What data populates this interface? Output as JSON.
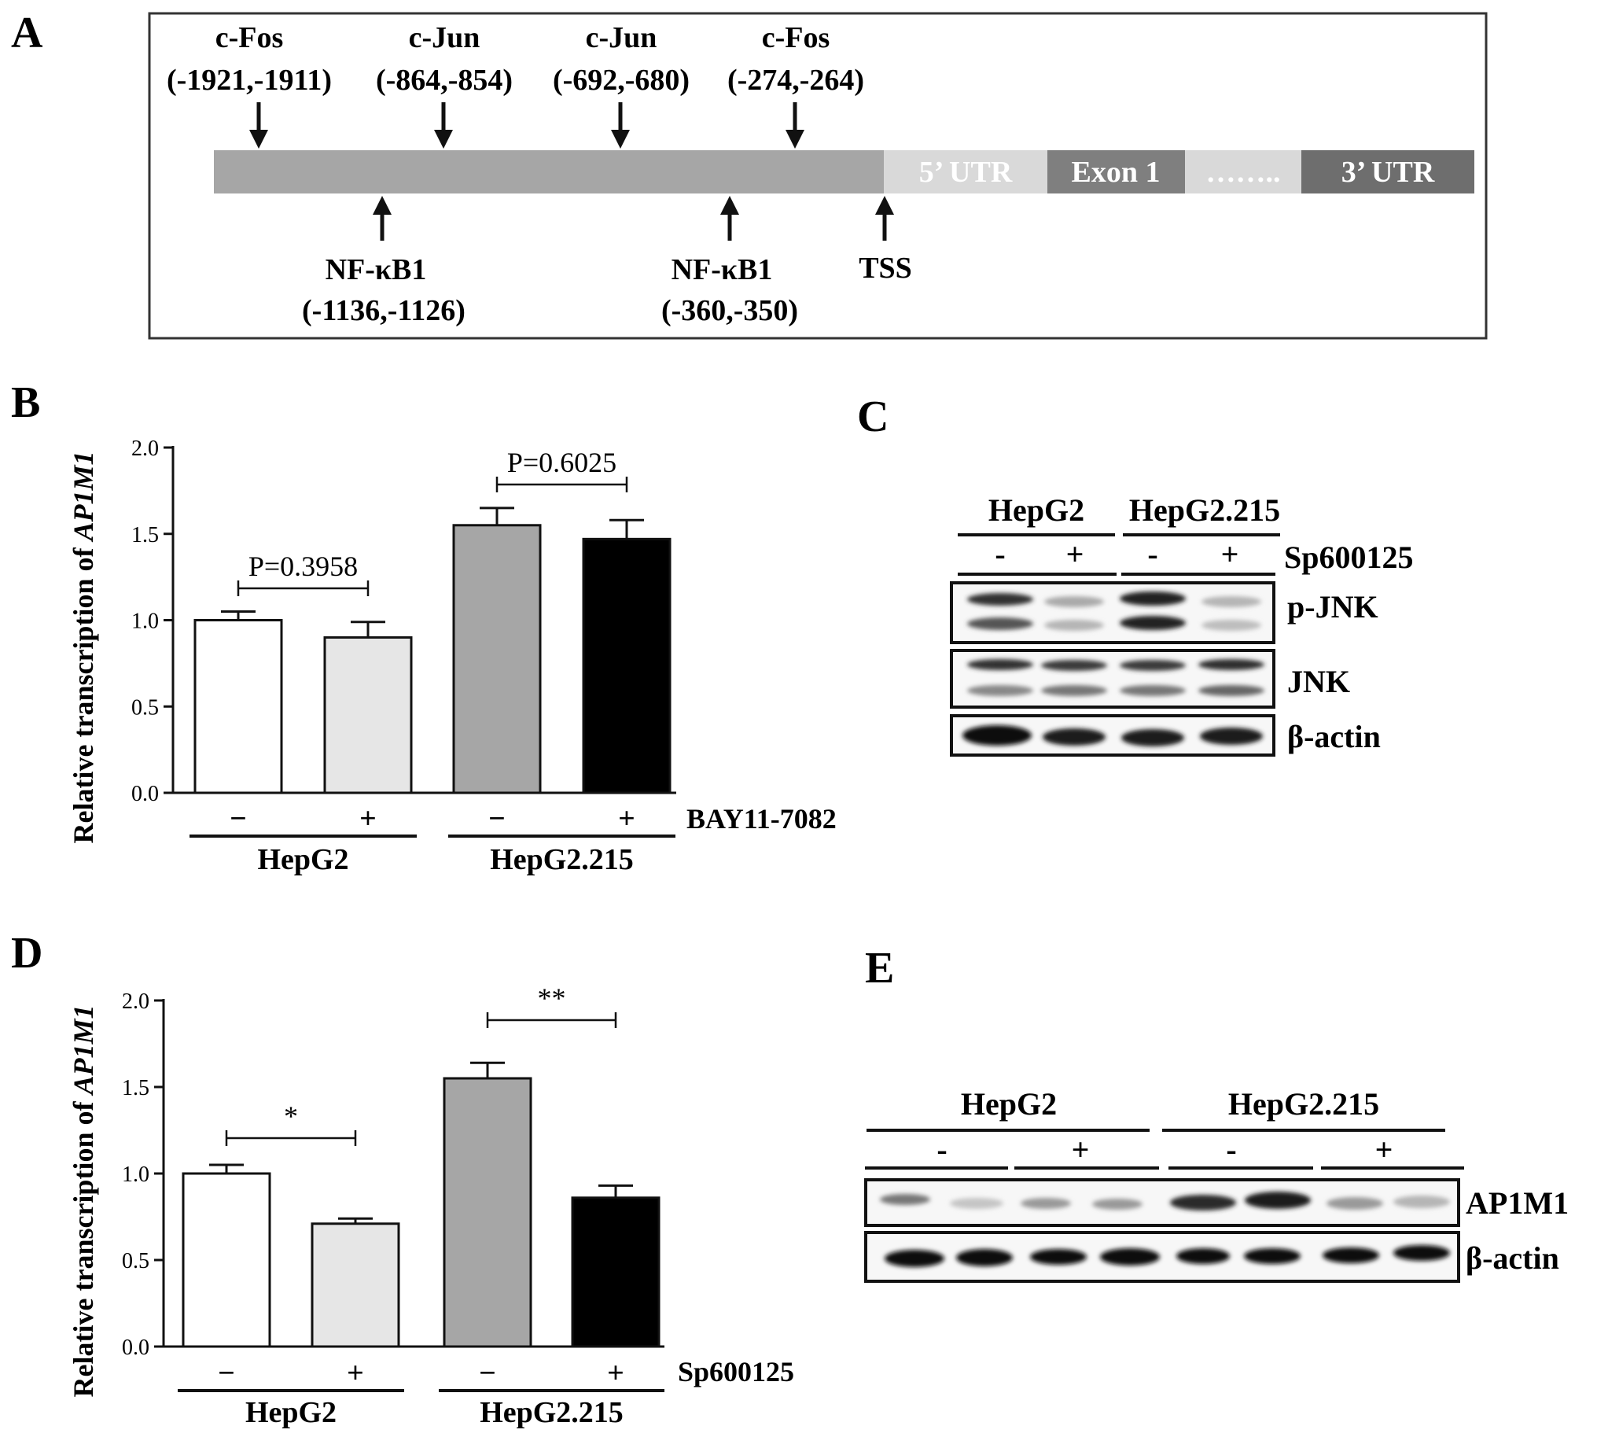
{
  "panel_letters": {
    "a": "A",
    "b": "B",
    "c": "C",
    "d": "D",
    "e": "E"
  },
  "panel_a": {
    "sites_above": [
      {
        "factor": "c-Fos",
        "range": "(-1921,-1911)"
      },
      {
        "factor": "c-Jun",
        "range": "(-864,-854)"
      },
      {
        "factor": "c-Jun",
        "range": "(-692,-680)"
      },
      {
        "factor": "c-Fos",
        "range": "(-274,-264)"
      }
    ],
    "sites_below": [
      {
        "factor": "NF-κB1",
        "range": "(-1136,-1126)"
      },
      {
        "factor": "NF-κB1",
        "range": "(-360,-350)"
      }
    ],
    "tss_label": "TSS",
    "segments": {
      "utr5": "5’ UTR",
      "exon1": "Exon 1",
      "dots": "……..",
      "utr3": "3’ UTR"
    },
    "colors": {
      "promoter": "#a6a6a6",
      "utr5": "#d9d9d9",
      "exon1": "#7f7f7f",
      "dots": "#d9d9d9",
      "utr3": "#6e6e6e"
    }
  },
  "chart_data": [
    {
      "panel": "B",
      "type": "bar",
      "ylabel_prefix": "Relative transcription of ",
      "ylabel_gene": "AP1M1",
      "ylim": [
        0,
        2.0
      ],
      "yticks": [
        "0.0",
        "0.5",
        "1.0",
        "1.5",
        "2.0"
      ],
      "treatment_label": "BAY11-7082",
      "groups": [
        "HepG2",
        "HepG2.215"
      ],
      "bars": [
        {
          "sign": "−",
          "value": 1.0,
          "error": 0.05,
          "fill": "#ffffff"
        },
        {
          "sign": "+",
          "value": 0.9,
          "error": 0.09,
          "fill": "#e6e6e6"
        },
        {
          "sign": "−",
          "value": 1.55,
          "error": 0.1,
          "fill": "#a6a6a6"
        },
        {
          "sign": "+",
          "value": 1.47,
          "error": 0.11,
          "fill": "#000000"
        }
      ],
      "comparisons": [
        {
          "text": "P=0.3958"
        },
        {
          "text": "P=0.6025"
        }
      ]
    },
    {
      "panel": "D",
      "type": "bar",
      "ylabel_prefix": "Relative transcription of ",
      "ylabel_gene": "AP1M1",
      "ylim": [
        0,
        2.0
      ],
      "yticks": [
        "0.0",
        "0.5",
        "1.0",
        "1.5",
        "2.0"
      ],
      "treatment_label": "Sp600125",
      "groups": [
        "HepG2",
        "HepG2.215"
      ],
      "bars": [
        {
          "sign": "−",
          "value": 1.0,
          "error": 0.05,
          "fill": "#ffffff"
        },
        {
          "sign": "+",
          "value": 0.71,
          "error": 0.03,
          "fill": "#e6e6e6"
        },
        {
          "sign": "−",
          "value": 1.55,
          "error": 0.09,
          "fill": "#a6a6a6"
        },
        {
          "sign": "+",
          "value": 0.86,
          "error": 0.07,
          "fill": "#000000"
        }
      ],
      "comparisons": [
        {
          "text": "*"
        },
        {
          "text": "**"
        }
      ]
    }
  ],
  "panel_c": {
    "groups": [
      "HepG2",
      "HepG2.215"
    ],
    "signs": [
      "-",
      "+",
      "-",
      "+"
    ],
    "treatment": "Sp600125",
    "blots": [
      "p-JNK",
      "JNK",
      "β-actin"
    ]
  },
  "panel_e": {
    "groups": [
      "HepG2",
      "HepG2.215"
    ],
    "signs": [
      "-",
      "+",
      "-",
      "+"
    ],
    "blots": [
      "AP1M1",
      "β-actin"
    ]
  }
}
